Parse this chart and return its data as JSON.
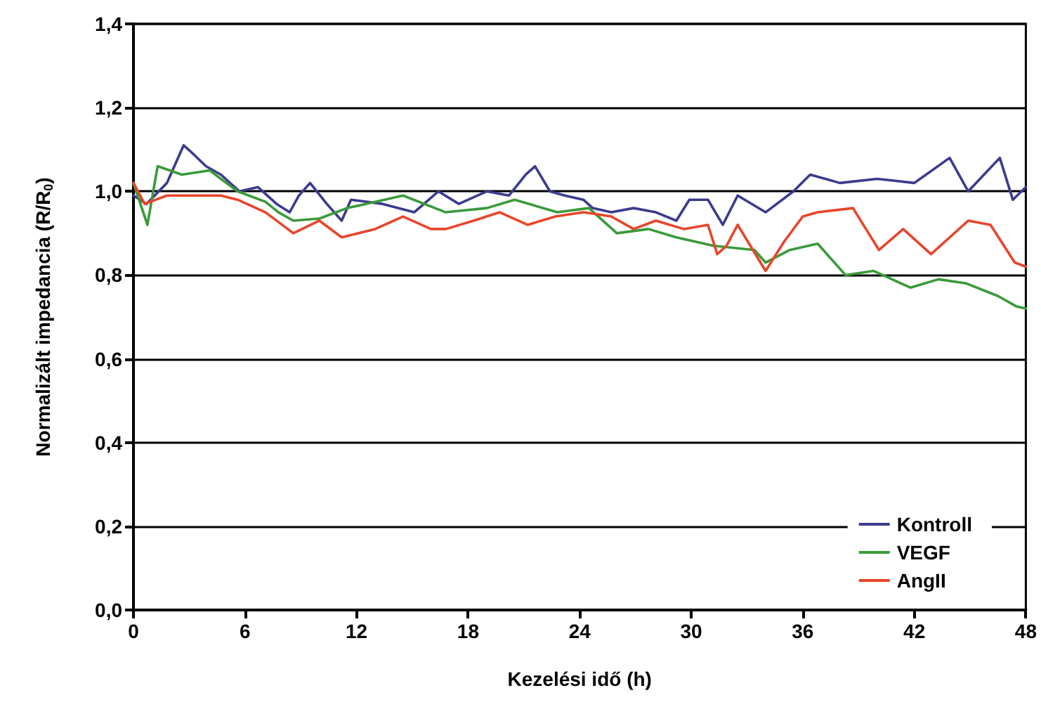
{
  "chart_data": {
    "type": "line",
    "xlabel": "Kezelési idő (h)",
    "ylabel": "Normalizált impedancia (R/R$_{0}$)",
    "xlim": [
      0,
      48
    ],
    "xticks": [
      0,
      6,
      12,
      18,
      24,
      30,
      36,
      42,
      48
    ],
    "ylim": [
      0,
      1.4
    ],
    "yticks": [
      {
        "value": 0,
        "label": "0,0"
      },
      {
        "value": 0.2,
        "label": "0,2"
      },
      {
        "value": 0.4,
        "label": "0,4"
      },
      {
        "value": 0.6,
        "label": "0,6"
      },
      {
        "value": 0.8,
        "label": "0,8"
      },
      {
        "value": 1.0,
        "label": "1,0"
      },
      {
        "value": 1.2,
        "label": "1,2"
      },
      {
        "value": 1.4,
        "label": "1,4"
      }
    ],
    "grid": "y",
    "legend": "bottom right",
    "marker": "none",
    "line_style": "solid",
    "series": [
      {
        "name": "Kontroll",
        "color": "#3b3b8f",
        "x": [
          0,
          0.7,
          1.8,
          2.7,
          3.2,
          3.9,
          4.7,
          5.7,
          6.7,
          7.7,
          8.4,
          8.9,
          9.5,
          10.4,
          11.2,
          11.7,
          13.4,
          15.1,
          16.4,
          17.5,
          19,
          20.2,
          21.1,
          21.6,
          22.4,
          23.2,
          24.2,
          24.7,
          25.7,
          26.9,
          28.1,
          29.2,
          29.9,
          30.9,
          31.7,
          32.5,
          34,
          35.5,
          36.4,
          38,
          40,
          42,
          43.9,
          44.9,
          46.6,
          47.3,
          48
        ],
        "values": [
          0.99,
          0.97,
          1.02,
          1.11,
          1.09,
          1.06,
          1.04,
          1.0,
          1.01,
          0.97,
          0.95,
          0.99,
          1.02,
          0.97,
          0.93,
          0.98,
          0.97,
          0.95,
          1.0,
          0.97,
          1.0,
          0.99,
          1.04,
          1.06,
          1.0,
          0.99,
          0.98,
          0.96,
          0.95,
          0.96,
          0.95,
          0.93,
          0.98,
          0.98,
          0.92,
          0.99,
          0.95,
          1.0,
          1.04,
          1.02,
          1.03,
          1.02,
          1.08,
          1.0,
          1.08,
          0.98,
          1.01
        ]
      },
      {
        "name": "VEGF",
        "color": "#3a9a3a",
        "x": [
          0,
          0.75,
          1.3,
          2.6,
          4.1,
          5.6,
          7.1,
          7.8,
          8.6,
          10,
          11.5,
          13,
          14.5,
          16.8,
          19,
          20.5,
          22.8,
          24.5,
          26,
          27.7,
          29.2,
          31.2,
          33.4,
          34,
          35.3,
          36.8,
          38.3,
          39.8,
          41.8,
          43.3,
          44.8,
          46.5,
          47.5,
          48
        ],
        "values": [
          1.02,
          0.92,
          1.06,
          1.04,
          1.05,
          1.0,
          0.975,
          0.95,
          0.93,
          0.935,
          0.96,
          0.975,
          0.99,
          0.95,
          0.96,
          0.98,
          0.95,
          0.96,
          0.9,
          0.91,
          0.89,
          0.87,
          0.86,
          0.83,
          0.86,
          0.875,
          0.8,
          0.81,
          0.77,
          0.79,
          0.78,
          0.75,
          0.725,
          0.72
        ]
      },
      {
        "name": "AngII",
        "color": "#e8452a",
        "x": [
          0,
          0.6,
          1.8,
          3.2,
          4.7,
          5.6,
          7.1,
          8.6,
          10,
          11.2,
          13,
          14.5,
          16,
          16.8,
          18.3,
          19.7,
          21.2,
          22.7,
          24.2,
          25.7,
          26.9,
          28.1,
          29.6,
          30.9,
          31.4,
          31.9,
          32.5,
          34,
          35,
          36,
          36.8,
          38.7,
          40.1,
          41.4,
          42.9,
          44.9,
          46.1,
          47.4,
          48
        ],
        "values": [
          1.02,
          0.97,
          0.99,
          0.99,
          0.99,
          0.98,
          0.95,
          0.9,
          0.93,
          0.89,
          0.91,
          0.94,
          0.91,
          0.91,
          0.93,
          0.95,
          0.92,
          0.94,
          0.95,
          0.94,
          0.91,
          0.93,
          0.91,
          0.92,
          0.85,
          0.87,
          0.92,
          0.81,
          0.88,
          0.94,
          0.95,
          0.96,
          0.86,
          0.91,
          0.85,
          0.93,
          0.92,
          0.83,
          0.82
        ]
      }
    ]
  }
}
